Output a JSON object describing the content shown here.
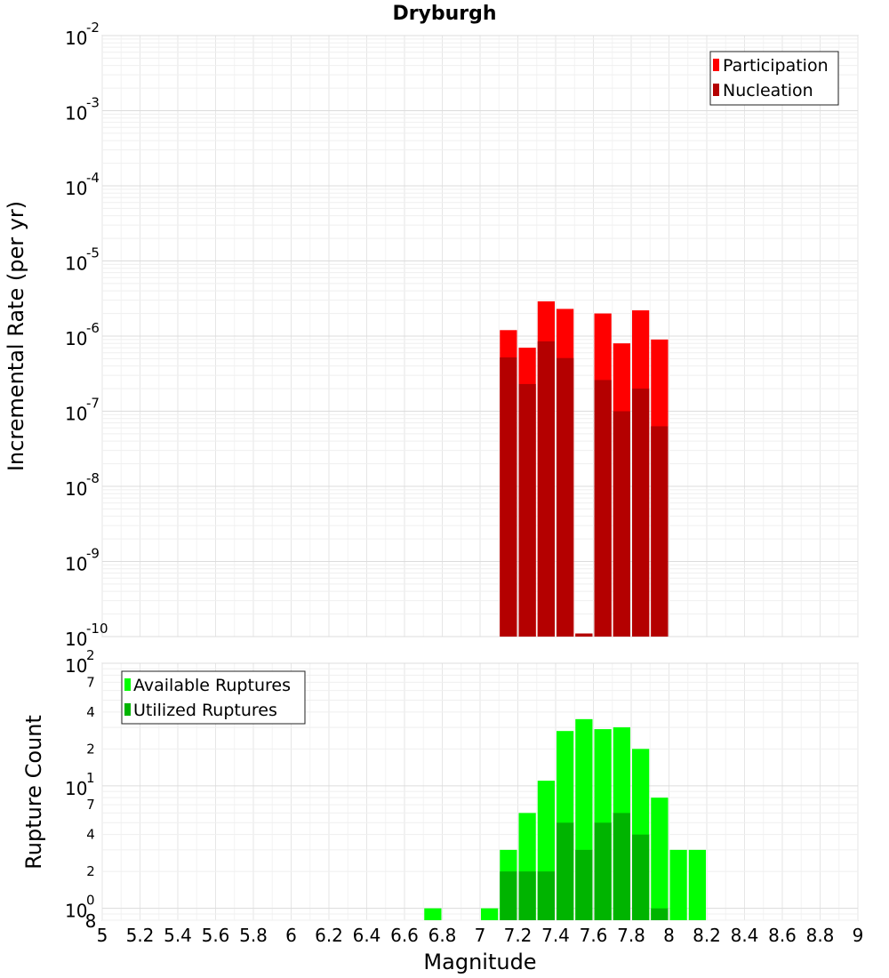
{
  "title": "Dryburgh",
  "xlabel": "Magnitude",
  "x_ticks": [
    "5",
    "5.2",
    "5.4",
    "5.6",
    "5.8",
    "6",
    "6.2",
    "6.4",
    "6.6",
    "6.8",
    "7",
    "7.2",
    "7.4",
    "7.6",
    "7.8",
    "8",
    "8.2",
    "8.4",
    "8.6",
    "8.8",
    "9"
  ],
  "chart_data": [
    {
      "type": "bar",
      "title": "Dryburgh",
      "xlabel": "Magnitude",
      "ylabel": "Incremental Rate (per yr)",
      "yscale": "log",
      "xlim": [
        5,
        9
      ],
      "ylim": [
        1e-10,
        0.01
      ],
      "grid": true,
      "legend_position": "top-right",
      "y_tick_bases": [
        "10",
        "10",
        "10",
        "10",
        "10",
        "10",
        "10",
        "10",
        "10"
      ],
      "y_tick_exps": [
        "-10",
        "-9",
        "-8",
        "-7",
        "-6",
        "-5",
        "-4",
        "-3",
        "-2"
      ],
      "legend": [
        "Participation",
        "Nucleation"
      ],
      "x": [
        7.15,
        7.25,
        7.35,
        7.45,
        7.55,
        7.65,
        7.75,
        7.85,
        7.95
      ],
      "series": [
        {
          "name": "Participation",
          "color": "#ff0000",
          "values": [
            1.2e-06,
            7e-07,
            2.9e-06,
            2.3e-06,
            1.1e-10,
            2e-06,
            8e-07,
            2.2e-06,
            9e-07
          ]
        },
        {
          "name": "Nucleation",
          "color": "#b40000",
          "values": [
            5.2e-07,
            2.3e-07,
            8.5e-07,
            5.1e-07,
            1.1e-10,
            2.6e-07,
            1e-07,
            2e-07,
            6.3e-08
          ]
        }
      ]
    },
    {
      "type": "bar",
      "xlabel": "Magnitude",
      "ylabel": "Rupture Count",
      "yscale": "log",
      "xlim": [
        5,
        9
      ],
      "ylim": [
        0.8,
        100
      ],
      "grid": true,
      "legend_position": "top-left",
      "y_tick_bases": [
        "10",
        "10",
        "10"
      ],
      "y_tick_exps": [
        "0",
        "1",
        "2"
      ],
      "y_minor_labels": [
        "2",
        "4",
        "7",
        "2",
        "4",
        "7",
        "8"
      ],
      "legend": [
        "Available Ruptures",
        "Utilized Ruptures"
      ],
      "x": [
        6.75,
        7.05,
        7.15,
        7.25,
        7.35,
        7.45,
        7.55,
        7.65,
        7.75,
        7.85,
        7.95,
        8.05,
        8.15
      ],
      "series": [
        {
          "name": "Available Ruptures",
          "color": "#00ff00",
          "values": [
            1,
            1,
            3,
            6,
            11,
            28,
            35,
            29,
            30,
            20,
            8,
            3,
            3
          ]
        },
        {
          "name": "Utilized Ruptures",
          "color": "#00b400",
          "values": [
            0,
            0,
            2,
            2,
            2,
            5,
            3,
            5,
            6,
            4,
            1,
            0,
            0
          ]
        }
      ]
    }
  ]
}
